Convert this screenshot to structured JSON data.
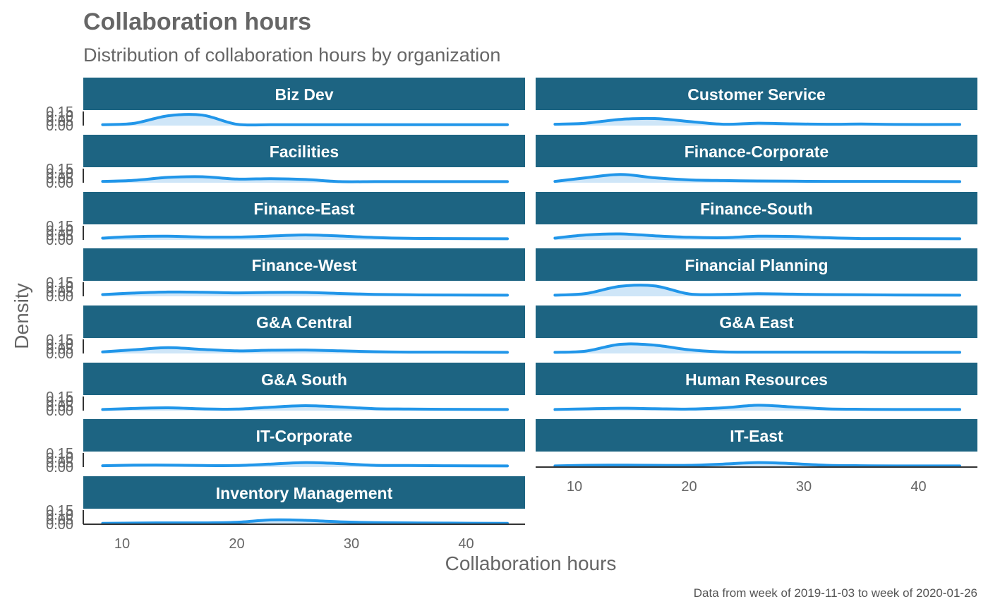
{
  "chart_data": {
    "type": "area",
    "title": "Collaboration hours",
    "subtitle": "Distribution of collaboration hours by organization",
    "xlabel": "Collaboration hours",
    "ylabel": "Density",
    "caption": "Data from week of 2019-11-03 to week of 2020-01-26",
    "xlim": [
      8.3,
      43.6
    ],
    "ylim": [
      0,
      0.15
    ],
    "x_ticks": [
      10,
      20,
      30,
      40
    ],
    "y_ticks": [
      0.0,
      0.05,
      0.1,
      0.15
    ],
    "y_tick_labels": [
      "0.00",
      "0.05",
      "0.10",
      "0.15"
    ],
    "grid": false,
    "legend": "none",
    "x": [
      8.3,
      11,
      14,
      17,
      20,
      23,
      26,
      29,
      32,
      35,
      38,
      43.6
    ],
    "series": [
      {
        "name": "Biz Dev",
        "values": [
          0.001,
          0.007,
          0.043,
          0.046,
          0.003,
          0.001,
          0.001,
          0.001,
          0.001,
          0.001,
          0.001,
          0.001
        ]
      },
      {
        "name": "Customer Service",
        "values": [
          0.003,
          0.008,
          0.026,
          0.03,
          0.016,
          0.003,
          0.008,
          0.005,
          0.003,
          0.004,
          0.002,
          0.002
        ]
      },
      {
        "name": "Facilities",
        "values": [
          0.003,
          0.008,
          0.022,
          0.025,
          0.014,
          0.016,
          0.012,
          0.002,
          0.002,
          0.002,
          0.002,
          0.002
        ]
      },
      {
        "name": "Finance-Corporate",
        "values": [
          0.003,
          0.02,
          0.036,
          0.02,
          0.01,
          0.007,
          0.005,
          0.004,
          0.003,
          0.003,
          0.003,
          0.002
        ]
      },
      {
        "name": "Finance-East",
        "values": [
          0.005,
          0.012,
          0.014,
          0.01,
          0.01,
          0.015,
          0.02,
          0.015,
          0.008,
          0.004,
          0.003,
          0.002
        ]
      },
      {
        "name": "Finance-South",
        "values": [
          0.005,
          0.02,
          0.025,
          0.016,
          0.009,
          0.007,
          0.014,
          0.013,
          0.007,
          0.003,
          0.003,
          0.002
        ]
      },
      {
        "name": "Finance-West",
        "values": [
          0.005,
          0.012,
          0.017,
          0.016,
          0.013,
          0.015,
          0.015,
          0.01,
          0.006,
          0.004,
          0.003,
          0.002
        ]
      },
      {
        "name": "Financial Planning",
        "values": [
          0.002,
          0.01,
          0.044,
          0.046,
          0.008,
          0.006,
          0.009,
          0.007,
          0.005,
          0.004,
          0.003,
          0.002
        ]
      },
      {
        "name": "G&A Central",
        "values": [
          0.004,
          0.014,
          0.024,
          0.016,
          0.009,
          0.012,
          0.013,
          0.009,
          0.005,
          0.003,
          0.003,
          0.002
        ]
      },
      {
        "name": "G&A East",
        "values": [
          0.002,
          0.008,
          0.04,
          0.036,
          0.014,
          0.004,
          0.003,
          0.003,
          0.003,
          0.003,
          0.002,
          0.002
        ]
      },
      {
        "name": "G&A South",
        "values": [
          0.002,
          0.007,
          0.01,
          0.005,
          0.004,
          0.013,
          0.02,
          0.014,
          0.006,
          0.004,
          0.003,
          0.002
        ]
      },
      {
        "name": "Human Resources",
        "values": [
          0.002,
          0.005,
          0.008,
          0.006,
          0.004,
          0.01,
          0.022,
          0.014,
          0.005,
          0.003,
          0.002,
          0.002
        ]
      },
      {
        "name": "IT-Corporate",
        "values": [
          0.003,
          0.006,
          0.006,
          0.004,
          0.004,
          0.011,
          0.018,
          0.013,
          0.005,
          0.004,
          0.003,
          0.002
        ]
      },
      {
        "name": "IT-East",
        "values": [
          0.002,
          0.005,
          0.006,
          0.005,
          0.005,
          0.011,
          0.018,
          0.013,
          0.005,
          0.003,
          0.002,
          0.002
        ]
      },
      {
        "name": "Inventory Management",
        "values": [
          0.001,
          0.002,
          0.003,
          0.003,
          0.006,
          0.017,
          0.015,
          0.008,
          0.004,
          0.003,
          0.002,
          0.001
        ]
      }
    ],
    "colors": {
      "line": "#2196e9",
      "fill": "#cfe6f8",
      "strip": "#1d6482",
      "strip_text": "#ffffff",
      "text": "#666666",
      "axis_line": "#333333"
    }
  }
}
